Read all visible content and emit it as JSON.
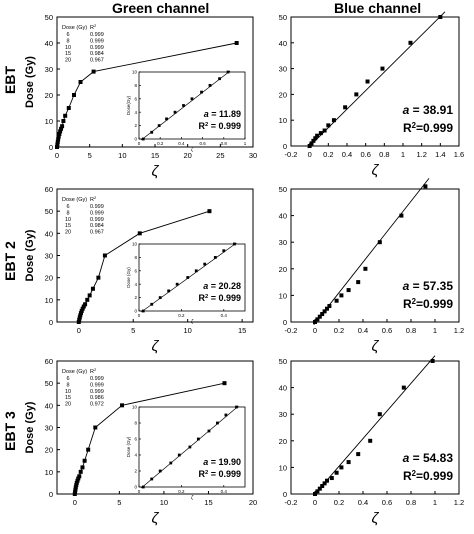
{
  "figure": {
    "column_titles": [
      "Green channel",
      "Blue channel"
    ],
    "row_labels": [
      "EBT",
      "EBT 2",
      "EBT 3"
    ]
  },
  "chart_data": [
    {
      "type": "line",
      "id": "ebt-green",
      "ylabel": "Dose (Gy)",
      "xlabel": "ζ",
      "xlim": [
        0,
        30
      ],
      "ylim": [
        0,
        50
      ],
      "xticks": [
        0,
        5,
        10,
        15,
        20,
        25,
        30
      ],
      "yticks": [
        0,
        10,
        20,
        30,
        40,
        50
      ],
      "series": [
        {
          "x": [
            0.0,
            0.06,
            0.12,
            0.18,
            0.26,
            0.36,
            0.48,
            0.62,
            0.78,
            0.98,
            1.25,
            1.8,
            2.6,
            3.6,
            5.6,
            27.5
          ],
          "y": [
            0,
            1,
            2,
            3,
            4,
            5,
            6,
            7,
            8,
            10,
            12,
            15,
            20,
            25,
            29,
            40
          ]
        }
      ],
      "table": {
        "header": [
          "Dose (Gy)",
          "R²"
        ],
        "rows": [
          [
            "6",
            "0.999"
          ],
          [
            "8",
            "0.999"
          ],
          [
            "10",
            "0.999"
          ],
          [
            "15",
            "0.984"
          ],
          [
            "20",
            "0.967"
          ]
        ]
      },
      "inset": {
        "ylabel": "Dose(Gy)",
        "xlabel": "ζ",
        "xlim": [
          0.0,
          1.0
        ],
        "ylim": [
          0,
          10
        ],
        "xticks": [
          0.0,
          0.2,
          0.4,
          0.6,
          0.8,
          1.0
        ],
        "yticks": [
          0,
          2,
          4,
          6,
          8,
          10
        ],
        "x": [
          0.04,
          0.12,
          0.19,
          0.26,
          0.34,
          0.42,
          0.5,
          0.59,
          0.67,
          0.76,
          0.84
        ],
        "y": [
          0,
          1,
          2,
          3,
          4,
          5,
          6,
          7,
          8,
          9,
          10
        ],
        "fit_label": "a = 11.89",
        "r2_label": "R² = 0.999"
      }
    },
    {
      "type": "scatter",
      "id": "ebt-blue",
      "xlabel": "ζ",
      "xlim": [
        -0.2,
        1.6
      ],
      "ylim": [
        0,
        50
      ],
      "xticks": [
        -0.2,
        0.0,
        0.2,
        0.4,
        0.6,
        0.8,
        1.0,
        1.2,
        1.4,
        1.6
      ],
      "yticks": [
        0,
        10,
        20,
        30,
        40,
        50
      ],
      "series": [
        {
          "x": [
            0.0,
            0.02,
            0.04,
            0.06,
            0.08,
            0.12,
            0.16,
            0.2,
            0.26,
            0.38,
            0.5,
            0.62,
            0.78,
            1.08,
            1.4
          ],
          "y": [
            0,
            1,
            2,
            3,
            4,
            5,
            6,
            8,
            10,
            15,
            20,
            25,
            30,
            40,
            50
          ]
        }
      ],
      "fit_line": {
        "x": [
          -0.02,
          1.45
        ],
        "y": [
          -0.8,
          52
        ]
      },
      "fit_label": "a = 38.91",
      "r2_label": "R²=0.999"
    },
    {
      "type": "line",
      "id": "ebt2-green",
      "ylabel": "Dose (Gy)",
      "xlabel": "ζ",
      "xlim": [
        -2,
        16
      ],
      "ylim": [
        0,
        60
      ],
      "xticks": [
        0,
        5,
        10,
        15
      ],
      "yticks": [
        0,
        10,
        20,
        30,
        40,
        50,
        60
      ],
      "series": [
        {
          "x": [
            0.0,
            0.04,
            0.09,
            0.14,
            0.2,
            0.27,
            0.36,
            0.46,
            0.58,
            0.78,
            1.0,
            1.3,
            1.8,
            2.4,
            5.6,
            12.0
          ],
          "y": [
            0,
            1,
            2,
            3,
            4,
            5,
            6,
            7,
            8,
            10,
            12,
            15,
            20,
            30,
            40,
            50
          ]
        }
      ],
      "table": {
        "header": [
          "Dose (Gy)",
          "R²"
        ],
        "rows": [
          [
            "6",
            "0.999"
          ],
          [
            "8",
            "0.999"
          ],
          [
            "10",
            "0.999"
          ],
          [
            "15",
            "0.984"
          ],
          [
            "20",
            "0.967"
          ]
        ]
      },
      "inset": {
        "ylabel": "Dose (Gy)",
        "xlabel": "ζ",
        "xlim": [
          0.0,
          0.5
        ],
        "ylim": [
          0,
          10
        ],
        "xticks": [
          0.0,
          0.2,
          0.4
        ],
        "yticks": [
          0,
          2,
          4,
          6,
          8,
          10
        ],
        "x": [
          0.02,
          0.06,
          0.1,
          0.14,
          0.18,
          0.23,
          0.27,
          0.31,
          0.36,
          0.4,
          0.45
        ],
        "y": [
          0,
          1,
          2,
          3,
          4,
          5,
          6,
          7,
          8,
          9,
          10
        ],
        "fit_label": "a = 20.28",
        "r2_label": "R² = 0.999"
      }
    },
    {
      "type": "scatter",
      "id": "ebt2-blue",
      "xlabel": "ζ",
      "xlim": [
        -0.2,
        1.2
      ],
      "ylim": [
        0,
        50
      ],
      "xticks": [
        -0.2,
        0.0,
        0.2,
        0.4,
        0.6,
        0.8,
        1.0,
        1.2
      ],
      "yticks": [
        0,
        10,
        20,
        30,
        40,
        50
      ],
      "series": [
        {
          "x": [
            0.0,
            0.02,
            0.04,
            0.06,
            0.08,
            0.1,
            0.12,
            0.18,
            0.22,
            0.28,
            0.36,
            0.42,
            0.54,
            0.72,
            0.92
          ],
          "y": [
            0,
            1,
            2,
            3,
            4,
            5,
            6,
            8,
            10,
            12,
            15,
            20,
            30,
            40,
            51
          ]
        }
      ],
      "fit_line": {
        "x": [
          -0.01,
          0.95
        ],
        "y": [
          -1,
          54
        ]
      },
      "fit_label": "a = 57.35",
      "r2_label": "R²=0.999"
    },
    {
      "type": "line",
      "id": "ebt3-green",
      "ylabel": "Dose (Gy)",
      "xlabel": "ζ",
      "xlim": [
        -2,
        20
      ],
      "ylim": [
        0,
        60
      ],
      "xticks": [
        0,
        5,
        10,
        15,
        20
      ],
      "yticks": [
        0,
        10,
        20,
        30,
        40,
        50,
        60
      ],
      "series": [
        {
          "x": [
            0.0,
            0.03,
            0.07,
            0.11,
            0.16,
            0.22,
            0.3,
            0.39,
            0.5,
            0.66,
            0.86,
            1.1,
            1.5,
            2.3,
            5.3,
            16.8
          ],
          "y": [
            0,
            1,
            2,
            3,
            4,
            5,
            6,
            7,
            8,
            10,
            12,
            15,
            20,
            30,
            40,
            50
          ]
        }
      ],
      "table": {
        "header": [
          "Dose (Gy)",
          "R²"
        ],
        "rows": [
          [
            "6",
            "0.999"
          ],
          [
            "8",
            "0.999"
          ],
          [
            "10",
            "0.999"
          ],
          [
            "15",
            "0.986"
          ],
          [
            "20",
            "0.972"
          ]
        ]
      },
      "inset": {
        "ylabel": "Dose (Gy)",
        "xlabel": "ζ",
        "xlim": [
          0.0,
          0.5
        ],
        "ylim": [
          0,
          10
        ],
        "xticks": [
          0.0,
          0.2,
          0.4
        ],
        "yticks": [
          0,
          2,
          4,
          6,
          8,
          10
        ],
        "x": [
          0.02,
          0.06,
          0.1,
          0.15,
          0.19,
          0.24,
          0.28,
          0.33,
          0.37,
          0.41,
          0.46
        ],
        "y": [
          0,
          1,
          2,
          3,
          4,
          5,
          6,
          7,
          8,
          9,
          10
        ],
        "fit_label": "a = 19.90",
        "r2_label": "R² = 0.999"
      }
    },
    {
      "type": "scatter",
      "id": "ebt3-blue",
      "xlabel": "ζ",
      "xlim": [
        -0.2,
        1.2
      ],
      "ylim": [
        0,
        50
      ],
      "xticks": [
        -0.2,
        0.0,
        0.2,
        0.4,
        0.6,
        0.8,
        1.0,
        1.2
      ],
      "yticks": [
        0,
        10,
        20,
        30,
        40,
        50
      ],
      "series": [
        {
          "x": [
            0.0,
            0.02,
            0.04,
            0.06,
            0.08,
            0.1,
            0.14,
            0.18,
            0.22,
            0.28,
            0.36,
            0.46,
            0.54,
            0.74,
            0.98
          ],
          "y": [
            0,
            1,
            2,
            3,
            4,
            5,
            6,
            8,
            10,
            12,
            15,
            20,
            30,
            40,
            50
          ]
        }
      ],
      "fit_line": {
        "x": [
          -0.01,
          1.0
        ],
        "y": [
          -0.5,
          52
        ]
      },
      "fit_label": "a = 54.83",
      "r2_label": "R²=0.999"
    }
  ]
}
